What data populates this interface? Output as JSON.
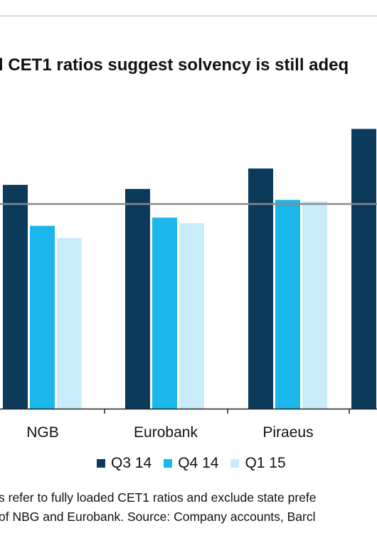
{
  "header": {
    "title": "l CET1 ratios suggest solvency is still adeq"
  },
  "chart_data": {
    "type": "bar",
    "title": "l CET1 ratios suggest solvency is still adeq",
    "xlabel": "",
    "ylabel": "",
    "categories": [
      "NGB",
      "Eurobank",
      "Piraeus",
      ""
    ],
    "series": [
      {
        "name": "Q3 14",
        "color": "#0b3a5b",
        "values": [
          16.4,
          16.1,
          17.6,
          20.5
        ]
      },
      {
        "name": "Q4 14",
        "color": "#1bb6ea",
        "values": [
          13.4,
          14.0,
          15.3,
          null
        ]
      },
      {
        "name": "Q1 15",
        "color": "#c8ecf9",
        "values": [
          12.5,
          13.6,
          15.2,
          null
        ]
      }
    ],
    "reference_line": {
      "value": 15.0,
      "color": "#8a8a8a"
    },
    "ylim": [
      0,
      25
    ],
    "grid": false,
    "legend": "bottom"
  },
  "footnote": {
    "line1": "s refer to fully loaded CET1 ratios and exclude state prefe",
    "line2": "of NBG and Eurobank. Source: Company accounts, Barcl"
  }
}
